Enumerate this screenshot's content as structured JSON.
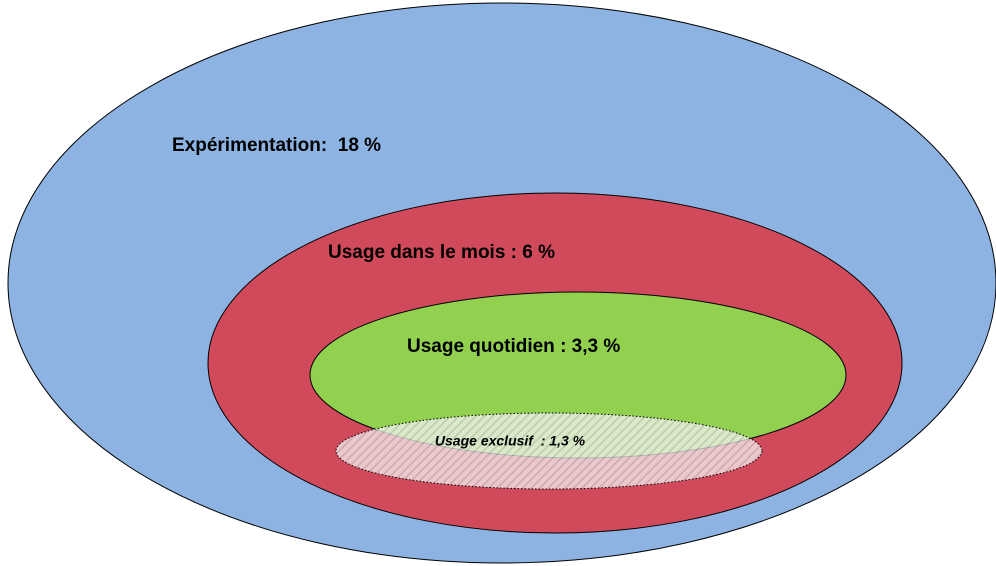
{
  "nodes": [
    {
      "label": "Expérimentation:  18 %"
    },
    {
      "label": "Usage dans le mois : 6 %"
    },
    {
      "label": "Usage quotidien : 3,3 %"
    },
    {
      "label": "Usage exclusif  : 1,3 %"
    }
  ]
}
